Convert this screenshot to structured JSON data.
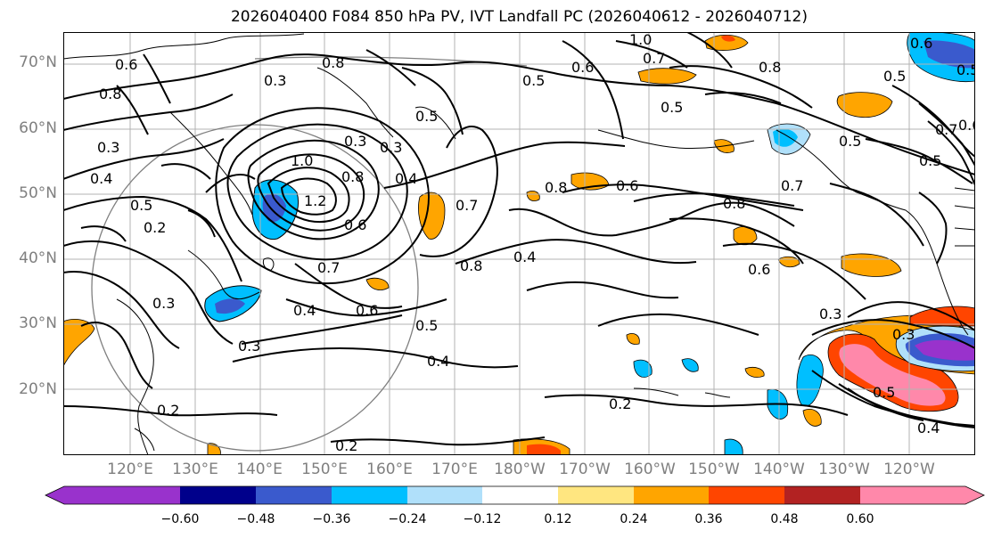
{
  "title": "2026040400 F084 850 hPa PV, IVT Landfall PC (2026040612 - 2026040712)",
  "lat_labels": [
    "70°N",
    "60°N",
    "50°N",
    "40°N",
    "30°N",
    "20°N"
  ],
  "lon_labels": [
    "120°E",
    "130°E",
    "140°E",
    "150°E",
    "160°E",
    "170°E",
    "180°W",
    "170°W",
    "160°W",
    "150°W",
    "140°W",
    "130°W",
    "120°W"
  ],
  "colorbar": {
    "colors": [
      "#9932cc",
      "#00008b",
      "#3a5acd",
      "#00bfff",
      "#b0e0fa",
      "#ffffff",
      "#ffe680",
      "#ffa500",
      "#ff4500",
      "#b22222",
      "#ff88aa"
    ],
    "tick_labels": [
      "−0.60",
      "−0.48",
      "−0.36",
      "−0.24",
      "−0.12",
      "0.12",
      "0.24",
      "0.36",
      "0.48",
      "0.60"
    ]
  },
  "contour_labels": [
    {
      "text": "0.6"
    },
    {
      "text": "0.8"
    },
    {
      "text": "0.3"
    },
    {
      "text": "0.8"
    },
    {
      "text": "0.3"
    },
    {
      "text": "0.4"
    },
    {
      "text": "0.5"
    },
    {
      "text": "0.2"
    },
    {
      "text": "0.3"
    },
    {
      "text": "1.0"
    },
    {
      "text": "1.2"
    },
    {
      "text": "0.6"
    },
    {
      "text": "0.8"
    },
    {
      "text": "0.3"
    },
    {
      "text": "0.4"
    },
    {
      "text": "0.5"
    },
    {
      "text": "0.7"
    },
    {
      "text": "0.7"
    },
    {
      "text": "0.4"
    },
    {
      "text": "0.3"
    },
    {
      "text": "0.3"
    },
    {
      "text": "0.6"
    },
    {
      "text": "0.5"
    },
    {
      "text": "0.4"
    },
    {
      "text": "0.2"
    },
    {
      "text": "0.2"
    },
    {
      "text": "1.0"
    },
    {
      "text": "0.6"
    },
    {
      "text": "0.5"
    },
    {
      "text": "0.7"
    },
    {
      "text": "0.8"
    },
    {
      "text": "0.5"
    },
    {
      "text": "0.8"
    },
    {
      "text": "0.4"
    },
    {
      "text": "0.6"
    },
    {
      "text": "0.8"
    },
    {
      "text": "0.7"
    },
    {
      "text": "0.8"
    },
    {
      "text": "0.6"
    },
    {
      "text": "0.5"
    },
    {
      "text": "0.2"
    },
    {
      "text": "0.5"
    },
    {
      "text": "0.5"
    },
    {
      "text": "0.3"
    },
    {
      "text": "0.6"
    },
    {
      "text": "0.5"
    },
    {
      "text": "0.4"
    },
    {
      "text": "0.5"
    },
    {
      "text": "0.3"
    },
    {
      "text": "0.7"
    },
    {
      "text": "0.6"
    }
  ]
}
